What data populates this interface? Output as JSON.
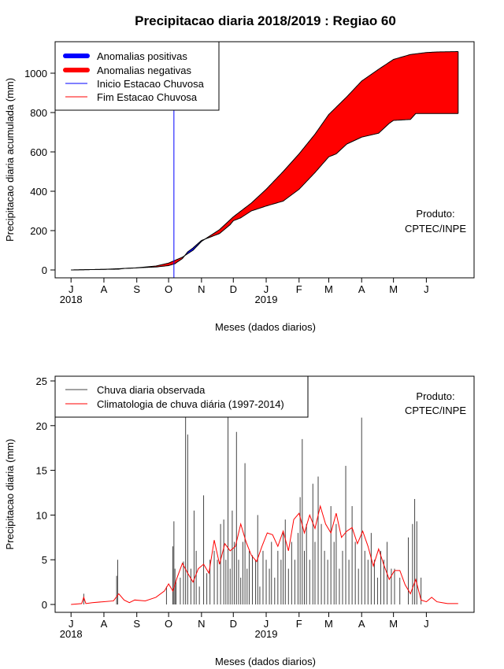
{
  "title": "Precipitacao diaria 2018/2019 : Regiao 60",
  "product_line1": "Produto:",
  "product_line2": "CPTEC/INPE",
  "colors": {
    "positive": "#0000ff",
    "negative": "#ff0000",
    "observed": "#444444",
    "climatology": "#ff0000",
    "start_line": "#0000ff"
  },
  "chart_data": [
    {
      "type": "area",
      "title": "Precipitacao diaria 2018/2019 : Regiao 60",
      "xlabel": "Meses (dados diarios)",
      "ylabel": "Precipitacao diaria acumulada (mm)",
      "ylim": [
        0,
        1100
      ],
      "yticks": [
        0,
        200,
        400,
        600,
        800,
        1000
      ],
      "xticks": [
        {
          "day": 0,
          "label": "J"
        },
        {
          "day": 31,
          "label": "A"
        },
        {
          "day": 62,
          "label": "S"
        },
        {
          "day": 92,
          "label": "O"
        },
        {
          "day": 123,
          "label": "N"
        },
        {
          "day": 153,
          "label": "D"
        },
        {
          "day": 184,
          "label": "J"
        },
        {
          "day": 215,
          "label": "F"
        },
        {
          "day": 243,
          "label": "M"
        },
        {
          "day": 274,
          "label": "A"
        },
        {
          "day": 304,
          "label": "M"
        },
        {
          "day": 335,
          "label": "J"
        }
      ],
      "year_labels": [
        {
          "day": 0,
          "label": "2018"
        },
        {
          "day": 184,
          "label": "2019"
        }
      ],
      "xlim": [
        -15,
        380
      ],
      "legend": [
        {
          "label": "Anomalias positivas",
          "color": "#0000ff",
          "style": "thick"
        },
        {
          "label": "Anomalias negativas",
          "color": "#ff0000",
          "style": "thick"
        },
        {
          "label": "Inicio Estacao Chuvosa",
          "color": "#0000ff",
          "style": "thin"
        },
        {
          "label": "Fim Estacao Chuvosa",
          "color": "#ff0000",
          "style": "thin"
        }
      ],
      "rainy_season_start_day": 97,
      "climatology_cumulative": {
        "day": [
          0,
          30,
          60,
          80,
          92,
          105,
          115,
          123,
          140,
          153,
          170,
          184,
          200,
          215,
          230,
          243,
          260,
          274,
          290,
          304,
          320,
          335,
          345,
          365
        ],
        "value": [
          0,
          3,
          10,
          20,
          35,
          65,
          100,
          145,
          205,
          270,
          340,
          410,
          500,
          590,
          690,
          790,
          880,
          960,
          1020,
          1070,
          1095,
          1105,
          1108,
          1110
        ]
      },
      "observed_cumulative": {
        "day": [
          0,
          30,
          45,
          50,
          60,
          80,
          92,
          98,
          105,
          110,
          115,
          123,
          140,
          150,
          153,
          160,
          170,
          184,
          200,
          215,
          230,
          243,
          250,
          260,
          274,
          290,
          300,
          304,
          320,
          325,
          335,
          345,
          365
        ],
        "value": [
          0,
          3,
          4,
          8,
          10,
          15,
          22,
          32,
          58,
          92,
          112,
          150,
          185,
          230,
          250,
          265,
          300,
          325,
          350,
          410,
          495,
          575,
          590,
          640,
          675,
          695,
          745,
          760,
          765,
          795,
          795,
          795,
          795
        ]
      }
    },
    {
      "type": "bar",
      "xlabel": "Meses (dados diarios)",
      "ylabel": "Precipitacao diaria (mm)",
      "ylim": [
        0,
        25
      ],
      "yticks": [
        0,
        5,
        10,
        15,
        20,
        25
      ],
      "xlim": [
        -15,
        380
      ],
      "legend": [
        {
          "label": "Chuva diaria observada",
          "color": "#444444"
        },
        {
          "label": "Climatologia de chuva diária (1997-2014)",
          "color": "#ff0000"
        }
      ],
      "observed_daily": {
        "day": [
          12,
          43,
          44,
          90,
          96,
          97,
          98,
          99,
          103,
          106,
          108,
          110,
          113,
          116,
          118,
          121,
          125,
          128,
          131,
          135,
          138,
          141,
          144,
          146,
          148,
          150,
          152,
          154,
          156,
          158,
          160,
          162,
          164,
          166,
          168,
          171,
          174,
          176,
          178,
          181,
          184,
          187,
          189,
          192,
          195,
          198,
          200,
          202,
          205,
          208,
          211,
          214,
          216,
          218,
          220,
          222,
          225,
          228,
          230,
          233,
          236,
          239,
          242,
          245,
          248,
          250,
          253,
          256,
          259,
          262,
          265,
          268,
          271,
          274,
          277,
          280,
          283,
          286,
          289,
          292,
          295,
          298,
          302,
          305,
          310,
          318,
          322,
          324,
          326,
          330
        ],
        "value": [
          1.2,
          3.2,
          5,
          2,
          6.5,
          9.3,
          4,
          2.5,
          3,
          4.8,
          21,
          19,
          4,
          10.5,
          6,
          2,
          12.2,
          3.5,
          5,
          6,
          5,
          9,
          9.5,
          5,
          21.2,
          4,
          10.5,
          7,
          19.3,
          5,
          3,
          7,
          15.8,
          4,
          6,
          5.5,
          5,
          10,
          2,
          6,
          5,
          4,
          7,
          3,
          6,
          5,
          8,
          9.5,
          4,
          7,
          5,
          8,
          12,
          18.5,
          6,
          9,
          5,
          13.5,
          7,
          14.3,
          9,
          6,
          5,
          11,
          7,
          9,
          4,
          6,
          15.5,
          5,
          11,
          7,
          4,
          20.9,
          6,
          5,
          8,
          5,
          3,
          6,
          5,
          7,
          4,
          4,
          3,
          7.5,
          9,
          11.8,
          9.3,
          3
        ]
      },
      "climatology_daily": {
        "day": [
          0,
          10,
          12,
          14,
          20,
          30,
          40,
          45,
          50,
          55,
          60,
          70,
          80,
          88,
          92,
          96,
          100,
          105,
          110,
          115,
          120,
          125,
          130,
          135,
          140,
          145,
          150,
          155,
          160,
          165,
          170,
          175,
          180,
          185,
          190,
          195,
          200,
          205,
          210,
          215,
          220,
          225,
          230,
          235,
          240,
          245,
          250,
          255,
          260,
          265,
          270,
          275,
          280,
          285,
          290,
          295,
          300,
          305,
          310,
          315,
          320,
          325,
          330,
          335,
          340,
          345,
          350,
          355,
          365
        ],
        "value": [
          0,
          0.1,
          0.8,
          0.1,
          0.2,
          0.3,
          0.4,
          1.2,
          0.5,
          0.2,
          0.5,
          0.4,
          0.8,
          1.5,
          2.3,
          1.5,
          3,
          4.6,
          3.5,
          2.5,
          4,
          4.5,
          3.5,
          7.2,
          4.5,
          6.8,
          6,
          6.5,
          9,
          7,
          5.5,
          4.8,
          6.5,
          8,
          7.8,
          6.5,
          8.2,
          6,
          9.5,
          10.2,
          8,
          10,
          8.5,
          11,
          9,
          8,
          10.2,
          7.5,
          8.2,
          8.6,
          6.8,
          8.2,
          6.5,
          4.3,
          6.2,
          4.4,
          2.8,
          3.8,
          3.8,
          2.2,
          1.2,
          2.8,
          0.5,
          0.3,
          0.8,
          0.3,
          0.2,
          0.1,
          0.1
        ]
      }
    }
  ]
}
